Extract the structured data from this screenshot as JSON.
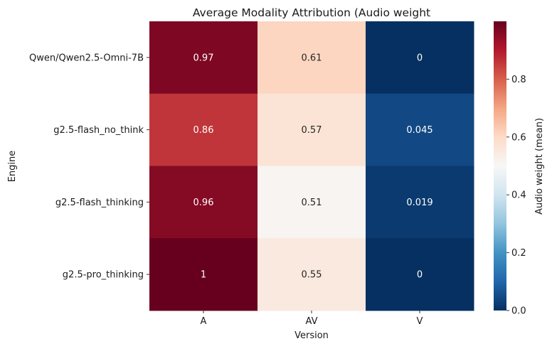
{
  "chart_data": {
    "type": "heatmap",
    "title": "Average Modality Attribution (Audio weight",
    "xlabel": "Version",
    "ylabel": "Engine",
    "x_categories": [
      "A",
      "AV",
      "V"
    ],
    "y_categories": [
      "Qwen/Qwen2.5-Omni-7B",
      "g2.5-flash_no_think",
      "g2.5-flash_thinking",
      "g2.5-pro_thinking"
    ],
    "values": [
      [
        0.97,
        0.61,
        0
      ],
      [
        0.86,
        0.57,
        0.045
      ],
      [
        0.96,
        0.51,
        0.019
      ],
      [
        1,
        0.55,
        0
      ]
    ],
    "cell_labels": [
      [
        "0.97",
        "0.61",
        "0"
      ],
      [
        "0.86",
        "0.57",
        "0.045"
      ],
      [
        "0.96",
        "0.51",
        "0.019"
      ],
      [
        "1",
        "0.55",
        "0"
      ]
    ],
    "colormap": "RdBu_r",
    "colormap_stops": [
      "#053061",
      "#2166ac",
      "#4393c3",
      "#92c5de",
      "#d1e5f0",
      "#f7f7f7",
      "#fddbc7",
      "#f4a582",
      "#d6604d",
      "#b2182b",
      "#67001f"
    ],
    "vmin": 0,
    "vmax": 1,
    "colorbar": {
      "label": "Audio weight (mean)",
      "ticks": [
        "0.0",
        "0.2",
        "0.4",
        "0.6",
        "0.8"
      ],
      "tick_values": [
        0,
        0.2,
        0.4,
        0.6,
        0.8
      ]
    }
  }
}
